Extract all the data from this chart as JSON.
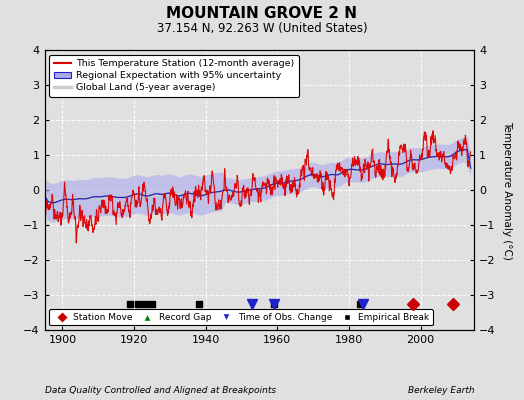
{
  "title": "MOUNTAIN GROVE 2 N",
  "subtitle": "37.154 N, 92.263 W (United States)",
  "footer_left": "Data Quality Controlled and Aligned at Breakpoints",
  "footer_right": "Berkeley Earth",
  "ylabel": "Temperature Anomaly (°C)",
  "xlim": [
    1895,
    2015
  ],
  "ylim": [
    -4,
    4
  ],
  "yticks": [
    -4,
    -3,
    -2,
    -1,
    0,
    1,
    2,
    3,
    4
  ],
  "xticks": [
    1900,
    1920,
    1940,
    1960,
    1980,
    2000
  ],
  "legend_entries": [
    {
      "label": "This Temperature Station (12-month average)",
      "color": "#ff0000",
      "lw": 1.2
    },
    {
      "label": "Regional Expectation with 95% uncertainty",
      "color": "#3333cc",
      "lw": 1.0
    },
    {
      "label": "Global Land (5-year average)",
      "color": "#bbbbbb",
      "lw": 2.0
    }
  ],
  "bg_color": "#e0e0e0",
  "plot_bg": "#e0e0e0",
  "grid_color": "#ffffff",
  "station_moves": [
    1998,
    2009
  ],
  "record_gaps": [],
  "obs_changes": [
    1953,
    1959,
    1984
  ],
  "empirical_breaks": [
    1919,
    1921,
    1923,
    1925,
    1938,
    1959,
    1983
  ],
  "marker_y": -3.25,
  "seed": 42
}
